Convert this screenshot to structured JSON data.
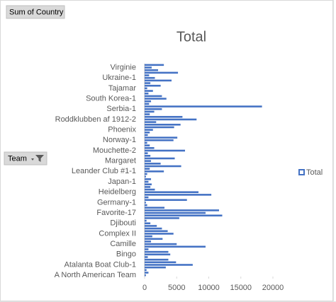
{
  "chart_data": {
    "type": "bar",
    "orientation": "horizontal",
    "title": "Total",
    "value_field_button": "Sum of Country",
    "axis_field_button": "Team",
    "categories": [
      "A North American Team",
      null,
      null,
      null,
      "Atalanta Boat Club-1",
      null,
      null,
      null,
      "Bingo",
      null,
      null,
      null,
      "Camille",
      null,
      null,
      null,
      "Complex II",
      null,
      null,
      null,
      "Djibouti",
      null,
      null,
      null,
      "Favorite-17",
      null,
      null,
      null,
      "Germany-1",
      null,
      null,
      null,
      "Heidelberg",
      null,
      null,
      null,
      "Japan-1",
      null,
      null,
      null,
      "Leander Club #1-1",
      null,
      null,
      null,
      "Margaret",
      null,
      null,
      null,
      "Mouchette-2",
      null,
      null,
      null,
      "Norway-1",
      null,
      null,
      null,
      "Phoenix",
      null,
      null,
      null,
      "Roddklubben af 1912-2",
      null,
      null,
      null,
      "Serbia-1",
      null,
      null,
      null,
      "South Korea-1",
      null,
      null,
      null,
      "Tajamar",
      null,
      null,
      null,
      "Ukraine-1",
      null,
      null,
      null,
      "Virginie",
      null
    ],
    "series": [
      {
        "name": "Total",
        "color": "#4472c4",
        "values": [
          200,
          600,
          300,
          3300,
          7500,
          4900,
          3700,
          500,
          4000,
          3700,
          600,
          9500,
          5000,
          1000,
          2800,
          1200,
          4500,
          3600,
          2700,
          1900,
          900,
          300,
          5400,
          12100,
          9500,
          11600,
          3100,
          400,
          200,
          6600,
          600,
          10400,
          8400,
          1600,
          900,
          1100,
          600,
          1000,
          200,
          400,
          3000,
          800,
          5700,
          2500,
          1000,
          4700,
          900,
          500,
          6300,
          1500,
          800,
          400,
          4500,
          5100,
          500,
          800,
          1300,
          4600,
          5600,
          1800,
          8100,
          5900,
          800,
          1500,
          2700,
          18300,
          700,
          1000,
          3400,
          2700,
          600,
          1300,
          400,
          2500,
          900,
          4200,
          1600,
          700,
          5200,
          2100,
          1100,
          3000
        ]
      }
    ],
    "xlim": [
      0,
      20000
    ],
    "xticks": [
      0,
      5000,
      10000,
      15000,
      20000
    ],
    "legend": "right"
  }
}
